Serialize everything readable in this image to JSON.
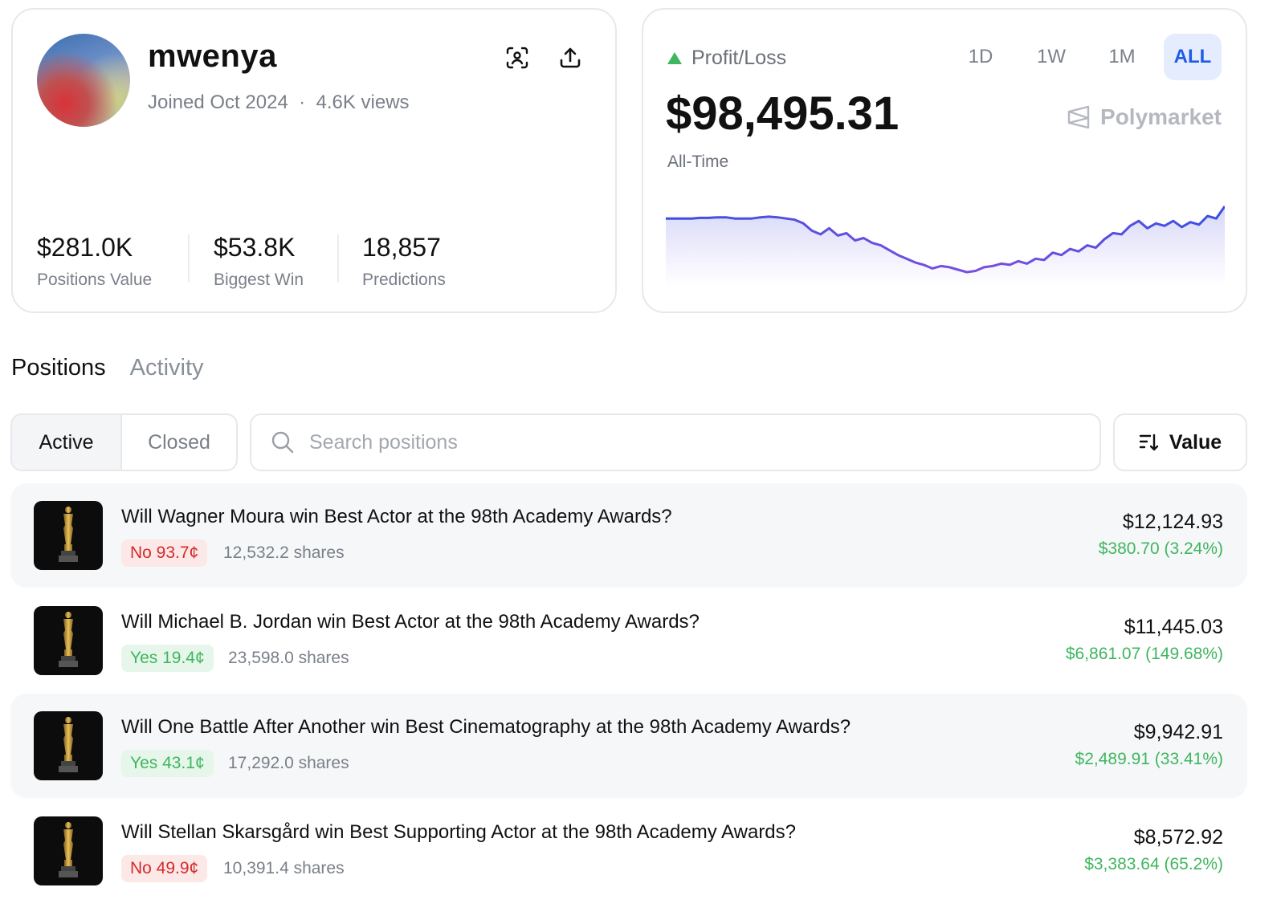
{
  "profile": {
    "username": "mwenya",
    "joined": "Joined Oct 2024",
    "views": "4.6K views",
    "separator": "·",
    "stats": [
      {
        "value": "$281.0K",
        "label": "Positions Value"
      },
      {
        "value": "$53.8K",
        "label": "Biggest Win"
      },
      {
        "value": "18,857",
        "label": "Predictions"
      }
    ],
    "icons": [
      "face-scan-icon",
      "share-upload-icon"
    ]
  },
  "pnl": {
    "label": "Profit/Loss",
    "trend": "up",
    "amount": "$98,495.31",
    "period_label": "All-Time",
    "brand": "Polymarket",
    "ranges": [
      "1D",
      "1W",
      "1M",
      "ALL"
    ],
    "selected_range": "ALL",
    "colors": {
      "up": "#3fb65f",
      "line_start": "#3b4fe0",
      "line_mid": "#7a4fe0",
      "selected": "#1f5ce6"
    },
    "sparkline": [
      70,
      70,
      70,
      70,
      70.5,
      70.5,
      71,
      71,
      70,
      70,
      70,
      71,
      71.5,
      71,
      70,
      69,
      66,
      60,
      57,
      62,
      56,
      58,
      52,
      54,
      50,
      48,
      44,
      40,
      37,
      34,
      32,
      29,
      31,
      30,
      28,
      26,
      27,
      30,
      31,
      33,
      32,
      35,
      33,
      37,
      36,
      42,
      40,
      45,
      43,
      48,
      46,
      53,
      58,
      57,
      64,
      68,
      62,
      66,
      64,
      68,
      63,
      67,
      65,
      72,
      70,
      80
    ]
  },
  "tabs": [
    {
      "label": "Positions",
      "active": true
    },
    {
      "label": "Activity",
      "active": false
    }
  ],
  "filter": {
    "segments": [
      {
        "label": "Active",
        "active": true
      },
      {
        "label": "Closed",
        "active": false
      }
    ],
    "search_placeholder": "Search positions",
    "search_value": "",
    "sort_label": "Value"
  },
  "positions": [
    {
      "question": "Will Wagner Moura win Best Actor at the 98th Academy Awards?",
      "outcome": "No 93.7¢",
      "side": "no",
      "shares": "12,532.2 shares",
      "value": "$12,124.93",
      "change": "$380.70 (3.24%)"
    },
    {
      "question": "Will Michael B. Jordan win Best Actor at the 98th Academy Awards?",
      "outcome": "Yes 19.4¢",
      "side": "yes",
      "shares": "23,598.0 shares",
      "value": "$11,445.03",
      "change": "$6,861.07 (149.68%)"
    },
    {
      "question": "Will One Battle After Another win Best Cinematography at the 98th Academy Awards?",
      "outcome": "Yes 43.1¢",
      "side": "yes",
      "shares": "17,292.0 shares",
      "value": "$9,942.91",
      "change": "$2,489.91 (33.41%)"
    },
    {
      "question": "Will Stellan Skarsgård win Best Supporting Actor at the 98th Academy Awards?",
      "outcome": "No 49.9¢",
      "side": "no",
      "shares": "10,391.4 shares",
      "value": "$8,572.92",
      "change": "$3,383.64 (65.2%)"
    }
  ]
}
